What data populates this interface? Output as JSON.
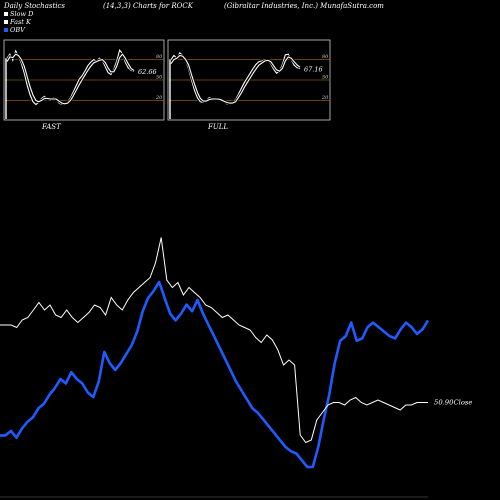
{
  "header": {
    "left": "Daily Stochastics",
    "mid": "(14,3,3) Charts for ROCK",
    "right": "(Gibraltar Industries, Inc.) MunafaSutra.com"
  },
  "legend": [
    {
      "label": "Slow  D",
      "color": "#ffffff"
    },
    {
      "label": "Fast K",
      "color": "#ffffff"
    },
    {
      "label": "OBV",
      "color": "#1f5cff"
    }
  ],
  "colors": {
    "price": "#ffffff",
    "obv": "#1f5cff",
    "stoch_band": "#8a5a10",
    "panel_border": "#cccccc"
  },
  "chart_data": [
    {
      "type": "line",
      "title": "FAST",
      "ylim": [
        0,
        100
      ],
      "levels": [
        20,
        50,
        80
      ],
      "tick_labels": [
        "80",
        "50",
        "20"
      ],
      "last_value_label": "62.66",
      "series": [
        {
          "values": [
            82,
            88,
            79,
            93,
            85,
            74,
            60,
            42,
            28,
            18,
            14,
            17,
            23,
            26,
            22,
            20,
            24,
            21,
            16,
            14,
            15,
            18,
            24,
            33,
            42,
            51,
            56,
            63,
            71,
            76,
            80,
            78,
            82,
            79,
            70,
            61,
            58,
            66,
            78,
            94,
            89,
            76,
            68,
            64,
            63
          ]
        },
        {
          "values": [
            77,
            84,
            83,
            88,
            86,
            80,
            70,
            55,
            40,
            28,
            20,
            18,
            20,
            23,
            23,
            22,
            22,
            22,
            19,
            16,
            15,
            16,
            20,
            27,
            35,
            43,
            50,
            57,
            64,
            70,
            75,
            77,
            79,
            80,
            76,
            68,
            62,
            62,
            70,
            83,
            88,
            82,
            74,
            67,
            64
          ]
        }
      ]
    },
    {
      "type": "line",
      "title": "FULL",
      "ylim": [
        0,
        100
      ],
      "levels": [
        20,
        50,
        80
      ],
      "tick_labels": [
        "80",
        "50",
        "20"
      ],
      "last_value_label": "67.16",
      "series": [
        {
          "values": [
            80,
            86,
            82,
            90,
            86,
            78,
            66,
            50,
            35,
            24,
            18,
            17,
            20,
            24,
            23,
            21,
            22,
            21,
            18,
            15,
            15,
            17,
            21,
            29,
            38,
            46,
            53,
            60,
            67,
            73,
            77,
            78,
            80,
            79,
            74,
            66,
            60,
            63,
            73,
            87,
            88,
            80,
            72,
            68,
            67
          ]
        },
        {
          "values": [
            74,
            80,
            82,
            86,
            85,
            80,
            72,
            58,
            44,
            32,
            23,
            19,
            19,
            21,
            22,
            22,
            22,
            21,
            19,
            17,
            16,
            16,
            18,
            24,
            31,
            39,
            46,
            53,
            60,
            66,
            72,
            75,
            78,
            79,
            77,
            71,
            65,
            63,
            67,
            78,
            84,
            82,
            77,
            72,
            69
          ]
        }
      ]
    },
    {
      "type": "line",
      "ylim": [
        47,
        58
      ],
      "last_value_label": "50.90Close",
      "series": [
        {
          "values": [
            54.0,
            54.0,
            54.0,
            53.9,
            54.2,
            54.3,
            54.6,
            54.9,
            54.6,
            54.8,
            54.4,
            54.3,
            54.6,
            54.3,
            54.1,
            54.3,
            54.5,
            54.8,
            54.7,
            54.4,
            55.1,
            54.8,
            54.6,
            55.0,
            55.3,
            55.5,
            55.7,
            55.9,
            56.5,
            57.5,
            55.8,
            55.5,
            55.7,
            55.2,
            55.5,
            55.3,
            55.1,
            54.8,
            54.7,
            54.5,
            54.3,
            54.4,
            54.2,
            54.0,
            53.9,
            53.8,
            53.5,
            53.3,
            53.6,
            53.4,
            53.0,
            52.4,
            52.6,
            52.4,
            49.6,
            49.3,
            49.4,
            50.2,
            50.5,
            50.8,
            50.9,
            50.9,
            50.8,
            51.0,
            51.1,
            50.9,
            50.8,
            50.9,
            51.0,
            50.9,
            50.8,
            50.7,
            50.6,
            50.8,
            50.8,
            50.9,
            50.9,
            50.9
          ]
        },
        {
          "values": [
            -5.2,
            -5.2,
            -5.0,
            -5.3,
            -4.9,
            -4.6,
            -4.4,
            -4.0,
            -3.8,
            -3.4,
            -3.1,
            -2.7,
            -2.9,
            -2.4,
            -2.7,
            -2.9,
            -3.3,
            -3.5,
            -2.8,
            -1.5,
            -2.0,
            -2.3,
            -2.0,
            -1.6,
            -1.2,
            -0.6,
            0.3,
            0.9,
            1.2,
            1.6,
            0.9,
            0.2,
            -0.1,
            0.2,
            0.6,
            0.3,
            0.8,
            0.2,
            -0.3,
            -0.8,
            -1.3,
            -1.8,
            -2.3,
            -2.8,
            -3.2,
            -3.6,
            -4.0,
            -4.2,
            -4.5,
            -4.8,
            -5.1,
            -5.4,
            -5.7,
            -5.9,
            -6.0,
            -6.3,
            -6.6,
            -6.6,
            -5.7,
            -4.5,
            -3.4,
            -2.0,
            -1.0,
            -0.8,
            -0.2,
            -1.0,
            -0.9,
            -0.4,
            -0.2,
            -0.4,
            -0.6,
            -0.8,
            -0.9,
            -0.5,
            -0.2,
            -0.4,
            -0.7,
            -0.5,
            -0.1
          ]
        }
      ]
    }
  ]
}
